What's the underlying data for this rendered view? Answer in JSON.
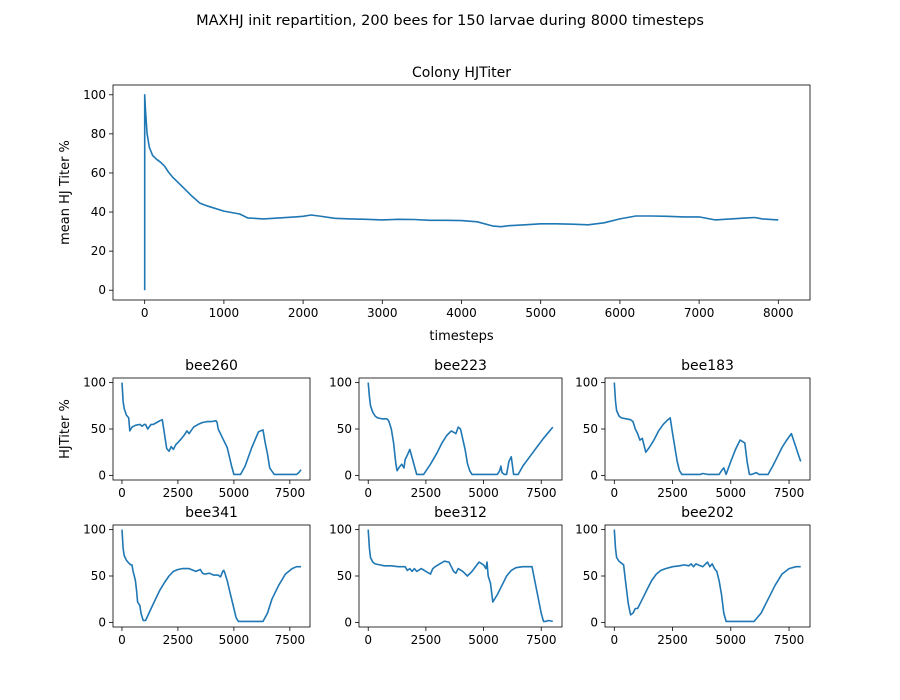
{
  "figure": {
    "suptitle": "MAXHJ init repartition, 200 bees for 150 larvae during 8000 timesteps"
  },
  "chart_data": [
    {
      "id": "colony",
      "type": "line",
      "title": "Colony HJTiter",
      "xlabel": "timesteps",
      "ylabel": "mean HJ Titer %",
      "xlim": [
        -400,
        8400
      ],
      "ylim": [
        -5,
        105
      ],
      "xticks": [
        0,
        1000,
        2000,
        3000,
        4000,
        5000,
        6000,
        7000,
        8000
      ],
      "yticks": [
        0,
        20,
        40,
        60,
        80,
        100
      ],
      "grid": false,
      "color": "#1f77b4",
      "x": [
        0,
        0,
        10,
        30,
        60,
        100,
        150,
        200,
        250,
        300,
        350,
        400,
        500,
        600,
        700,
        800,
        1000,
        1200,
        1300,
        1500,
        1700,
        1900,
        2000,
        2100,
        2200,
        2400,
        2600,
        2800,
        3000,
        3200,
        3400,
        3600,
        3800,
        4000,
        4200,
        4400,
        4500,
        4600,
        4800,
        5000,
        5200,
        5400,
        5600,
        5800,
        6000,
        6200,
        6400,
        6600,
        6800,
        7000,
        7200,
        7400,
        7600,
        7700,
        7800,
        8000
      ],
      "y": [
        0,
        100,
        92,
        80,
        73,
        69,
        67,
        65.5,
        63.5,
        60.5,
        58,
        56,
        52,
        48,
        44.5,
        43,
        40.5,
        39,
        37,
        36.5,
        37,
        37.5,
        37.8,
        38.5,
        38,
        36.8,
        36.5,
        36.3,
        36,
        36.3,
        36.2,
        35.8,
        35.8,
        35.6,
        35,
        32.8,
        32.5,
        33,
        33.5,
        34,
        34,
        33.8,
        33.5,
        34.5,
        36.5,
        38,
        38,
        37.8,
        37.5,
        37.5,
        36,
        36.5,
        37,
        37.2,
        36.5,
        36
      ]
    },
    {
      "id": "bee260",
      "type": "line",
      "title": "bee260",
      "ylabel": "HJTiter %",
      "xlim": [
        -400,
        8400
      ],
      "ylim": [
        -5,
        105
      ],
      "xticks": [
        0,
        2500,
        5000,
        7500
      ],
      "yticks": [
        0,
        50,
        100
      ],
      "color": "#1f77b4",
      "x": [
        0,
        50,
        100,
        200,
        300,
        350,
        450,
        600,
        800,
        900,
        1000,
        1050,
        1150,
        1300,
        1400,
        1550,
        1700,
        1800,
        2000,
        2100,
        2200,
        2300,
        2400,
        2600,
        2800,
        2900,
        3000,
        3200,
        3400,
        3600,
        3800,
        4000,
        4200,
        4250,
        4300,
        4500,
        4700,
        4800,
        4900,
        5000,
        5100,
        5300,
        5500,
        5800,
        6100,
        6300,
        6400,
        6500,
        6600,
        6800,
        7000,
        7200,
        7400,
        7600,
        7800,
        7900,
        8000
      ],
      "y": [
        100,
        80,
        72,
        65,
        62,
        48,
        52,
        54,
        55,
        53,
        55,
        55,
        50,
        55,
        55,
        57,
        59,
        60,
        29,
        26,
        31,
        28,
        33,
        38,
        44,
        48,
        45,
        52,
        55,
        57,
        58,
        58,
        59,
        57,
        50,
        40,
        30,
        20,
        10,
        1,
        1,
        1,
        10,
        30,
        47,
        49,
        35,
        23,
        8,
        1,
        1,
        1,
        1,
        1,
        1,
        3,
        6
      ]
    },
    {
      "id": "bee223",
      "type": "line",
      "title": "bee223",
      "xlim": [
        -400,
        8400
      ],
      "ylim": [
        -5,
        105
      ],
      "xticks": [
        0,
        2500,
        5000,
        7500
      ],
      "yticks": [
        0,
        50,
        100
      ],
      "color": "#1f77b4",
      "x": [
        0,
        50,
        100,
        200,
        300,
        400,
        600,
        800,
        850,
        900,
        1000,
        1100,
        1200,
        1250,
        1350,
        1450,
        1550,
        1600,
        1700,
        1800,
        2100,
        2200,
        2400,
        2700,
        3000,
        3200,
        3400,
        3600,
        3800,
        3900,
        4000,
        4200,
        4300,
        4400,
        4500,
        5600,
        5700,
        5750,
        5800,
        5900,
        6000,
        6100,
        6200,
        6300,
        6400,
        6500,
        6700,
        7000,
        7300,
        7600,
        7800,
        8000
      ],
      "y": [
        100,
        85,
        75,
        68,
        64,
        62,
        61,
        61,
        60,
        58,
        50,
        35,
        12,
        5,
        9,
        12,
        8,
        17,
        22,
        28,
        1,
        1,
        1,
        12,
        25,
        35,
        43,
        48,
        45,
        52,
        50,
        28,
        13,
        5,
        1,
        1,
        5,
        10,
        3,
        1,
        1,
        15,
        20,
        1,
        1,
        1,
        10,
        20,
        30,
        40,
        46,
        52
      ]
    },
    {
      "id": "bee183",
      "type": "line",
      "title": "bee183",
      "xlim": [
        -400,
        8400
      ],
      "ylim": [
        -5,
        105
      ],
      "xticks": [
        0,
        2500,
        5000,
        7500
      ],
      "yticks": [
        0,
        50,
        100
      ],
      "color": "#1f77b4",
      "x": [
        0,
        50,
        100,
        200,
        300,
        500,
        700,
        800,
        900,
        1000,
        1100,
        1200,
        1300,
        1350,
        1500,
        1700,
        1900,
        2100,
        2300,
        2400,
        2500,
        2600,
        2700,
        2800,
        2900,
        3000,
        3500,
        3700,
        3800,
        4000,
        4500,
        4600,
        4700,
        4800,
        5000,
        5200,
        5400,
        5600,
        5700,
        5800,
        5900,
        6100,
        6200,
        6400,
        6600,
        6800,
        7000,
        7200,
        7400,
        7600,
        7800,
        8000
      ],
      "y": [
        100,
        80,
        70,
        64,
        62,
        61,
        60,
        58,
        50,
        45,
        38,
        40,
        30,
        25,
        30,
        38,
        48,
        55,
        60,
        62,
        45,
        30,
        15,
        5,
        1,
        1,
        1,
        1,
        2,
        1,
        1,
        5,
        8,
        1,
        15,
        28,
        38,
        35,
        15,
        1,
        1,
        3,
        1,
        1,
        1,
        10,
        20,
        30,
        38,
        45,
        30,
        15
      ]
    },
    {
      "id": "bee341",
      "type": "line",
      "title": "bee341",
      "xlim": [
        -400,
        8400
      ],
      "ylim": [
        -5,
        105
      ],
      "xticks": [
        0,
        2500,
        5000,
        7500
      ],
      "yticks": [
        0,
        50,
        100
      ],
      "color": "#1f77b4",
      "x": [
        0,
        50,
        100,
        200,
        300,
        400,
        450,
        500,
        550,
        600,
        650,
        700,
        800,
        850,
        950,
        1050,
        1150,
        1300,
        1500,
        1700,
        1900,
        2100,
        2300,
        2500,
        2700,
        3000,
        3300,
        3500,
        3600,
        3700,
        3900,
        4100,
        4300,
        4400,
        4500,
        4550,
        4600,
        4700,
        4800,
        5000,
        5100,
        5200,
        5300,
        5500,
        6000,
        6300,
        6500,
        6700,
        7000,
        7300,
        7600,
        7800,
        8000
      ],
      "y": [
        100,
        80,
        72,
        67,
        64,
        62,
        62,
        55,
        50,
        45,
        35,
        22,
        18,
        10,
        2,
        2,
        7,
        15,
        25,
        35,
        43,
        50,
        55,
        57,
        58,
        58,
        55,
        57,
        53,
        52,
        53,
        51,
        51,
        49,
        55,
        56,
        53,
        45,
        35,
        15,
        5,
        1,
        1,
        1,
        1,
        1,
        10,
        25,
        40,
        52,
        58,
        60,
        60
      ]
    },
    {
      "id": "bee312",
      "type": "line",
      "title": "bee312",
      "xlim": [
        -400,
        8400
      ],
      "ylim": [
        -5,
        105
      ],
      "xticks": [
        0,
        2500,
        5000,
        7500
      ],
      "yticks": [
        0,
        50,
        100
      ],
      "color": "#1f77b4",
      "x": [
        0,
        50,
        100,
        200,
        300,
        500,
        700,
        1000,
        1300,
        1600,
        1700,
        1800,
        1900,
        2000,
        2100,
        2300,
        2500,
        2700,
        2800,
        2900,
        3100,
        3300,
        3500,
        3600,
        3700,
        3800,
        3900,
        4100,
        4300,
        4500,
        4800,
        5000,
        5100,
        5150,
        5200,
        5300,
        5400,
        5600,
        5800,
        6000,
        6200,
        6400,
        6700,
        7100,
        7300,
        7500,
        7600,
        7700,
        7800,
        8000
      ],
      "y": [
        100,
        80,
        70,
        65,
        63,
        62,
        61,
        61,
        60,
        60,
        56,
        58,
        55,
        58,
        55,
        58,
        55,
        52,
        58,
        60,
        63,
        66,
        65,
        60,
        55,
        53,
        58,
        55,
        50,
        55,
        65,
        62,
        58,
        65,
        50,
        42,
        22,
        30,
        40,
        50,
        56,
        59,
        60,
        60,
        35,
        10,
        1,
        1,
        2,
        1
      ]
    },
    {
      "id": "bee202",
      "type": "line",
      "title": "bee202",
      "xlim": [
        -400,
        8400
      ],
      "ylim": [
        -5,
        105
      ],
      "xticks": [
        0,
        2500,
        5000,
        7500
      ],
      "yticks": [
        0,
        50,
        100
      ],
      "color": "#1f77b4",
      "x": [
        0,
        50,
        100,
        200,
        300,
        400,
        500,
        600,
        700,
        800,
        900,
        1000,
        1200,
        1400,
        1600,
        1800,
        2000,
        2200,
        2500,
        2800,
        3000,
        3200,
        3300,
        3400,
        3500,
        3600,
        3800,
        4000,
        4100,
        4200,
        4300,
        4400,
        4500,
        4600,
        4700,
        4800,
        5000,
        5500,
        6000,
        6300,
        6600,
        6900,
        7200,
        7500,
        7800,
        8000
      ],
      "y": [
        100,
        80,
        70,
        66,
        64,
        62,
        40,
        20,
        8,
        10,
        15,
        15,
        25,
        35,
        45,
        52,
        56,
        58,
        60,
        61,
        62,
        61,
        63,
        60,
        63,
        62,
        60,
        65,
        60,
        63,
        58,
        55,
        45,
        30,
        10,
        1,
        1,
        1,
        1,
        10,
        25,
        40,
        52,
        58,
        60,
        60
      ]
    }
  ]
}
